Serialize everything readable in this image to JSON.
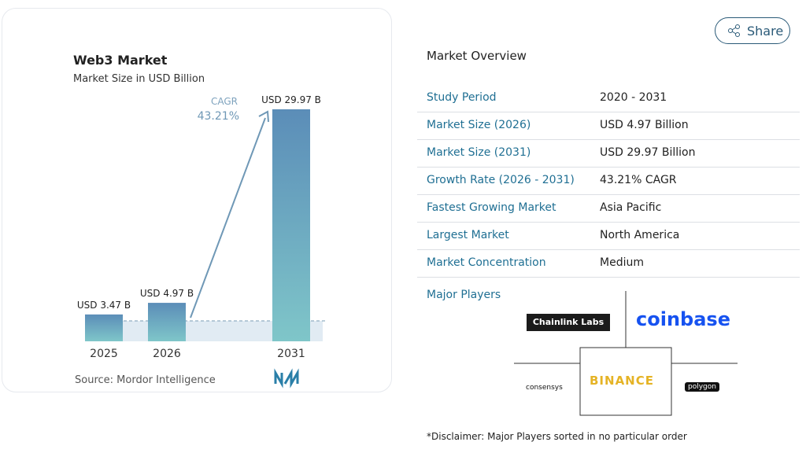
{
  "chart_data": {
    "type": "bar",
    "title": "Web3 Market",
    "subtitle": "Market Size in USD Billion",
    "categories": [
      "2025",
      "2026",
      "2031"
    ],
    "values": [
      3.47,
      4.97,
      29.97
    ],
    "value_labels": [
      "USD 3.47 B",
      "USD 4.97 B",
      "USD 29.97 B"
    ],
    "colors": [
      "#5b8db8",
      "#7fc6c9"
    ],
    "annotations": [
      "CAGR",
      "43.21%"
    ],
    "source": "Source: Mordor Intelligence"
  },
  "share": "Share",
  "overview": {
    "title": "Market Overview",
    "rows": [
      [
        "Study Period",
        "2020 - 2031"
      ],
      [
        "Market Size (2026)",
        "USD 4.97 Billion"
      ],
      [
        "Market Size (2031)",
        "USD 29.97 Billion"
      ],
      [
        "Growth Rate (2026 - 2031)",
        "43.21% CAGR"
      ],
      [
        "Fastest Growing Market",
        "Asia Pacific"
      ],
      [
        "Largest Market",
        "North America"
      ],
      [
        "Market Concentration",
        "Medium"
      ]
    ]
  },
  "players": {
    "title": "Major Players",
    "logos": [
      "Chainlink Labs",
      "coinbase",
      "consensys",
      "BINANCE",
      "polygon"
    ]
  },
  "disclaimer": "*Disclaimer: Major Players sorted in no particular order"
}
